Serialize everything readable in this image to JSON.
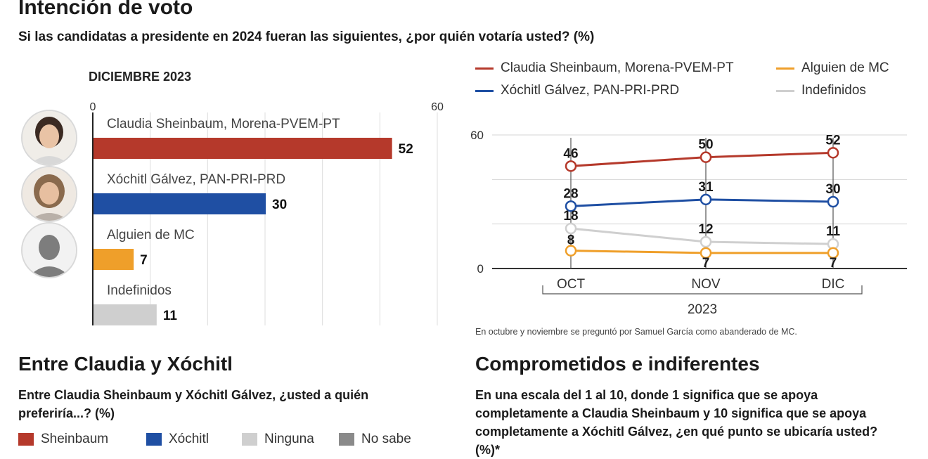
{
  "header": {
    "title": "Intención de voto",
    "subtitle": "Si las candidatas a presidente en 2024 fueran las siguientes, ¿por quién votaría usted? (%)"
  },
  "colors": {
    "sheinbaum": "#b5392b",
    "galvez": "#1f4fa3",
    "mc": "#ef9f2a",
    "indefinidos": "#cfcfcf",
    "no_sabe": "#8a8a8a"
  },
  "chart_data": [
    {
      "type": "bar",
      "title": "DICIEMBRE 2023",
      "categories": [
        "Claudia Sheinbaum, Morena-PVEM-PT",
        "Xóchitl Gálvez, PAN-PRI-PRD",
        "Alguien de MC",
        "Indefinidos"
      ],
      "values": [
        52,
        30,
        7,
        11
      ],
      "xlim": [
        0,
        60
      ],
      "tick_labels": [
        "0",
        "60"
      ],
      "orientation": "horizontal",
      "grid": true
    },
    {
      "type": "line",
      "x": [
        "OCT",
        "NOV",
        "DIC"
      ],
      "xlabel": "2023",
      "ylim": [
        0,
        60
      ],
      "tick_labels": [
        "0",
        "60"
      ],
      "grid": true,
      "legend": "top",
      "series": [
        {
          "name": "Claudia Sheinbaum, Morena-PVEM-PT",
          "values": [
            46,
            50,
            52
          ],
          "labels": [
            "46",
            "50",
            "52"
          ]
        },
        {
          "name": "Xóchitl Gálvez, PAN-PRI-PRD",
          "values": [
            28,
            31,
            30
          ],
          "labels": [
            "28",
            "31",
            "30"
          ]
        },
        {
          "name": "Alguien de MC",
          "values": [
            8,
            7,
            7
          ],
          "labels": [
            "8",
            "7",
            "7"
          ]
        },
        {
          "name": "Indefinidos",
          "values": [
            18,
            12,
            11
          ],
          "labels": [
            "18",
            "12",
            "11"
          ]
        }
      ],
      "footnote": "En octubre y noviembre se preguntó por Samuel García como abanderado de MC."
    }
  ],
  "section2": {
    "title": "Entre Claudia y Xóchitl",
    "question": "Entre Claudia Sheinbaum y Xóchitl Gálvez, ¿usted a quién preferiría...? (%)",
    "legend": [
      "Sheinbaum",
      "Xóchitl",
      "Ninguna",
      "No sabe"
    ]
  },
  "section3": {
    "title": "Comprometidos e indiferentes",
    "question": "En una escala del 1 al 10, donde 1 significa que se apoya completamente a Claudia Sheinbaum y 10 significa que se apoya completamente a Xóchitl Gálvez, ¿en qué punto se ubicaría usted? (%)*"
  }
}
